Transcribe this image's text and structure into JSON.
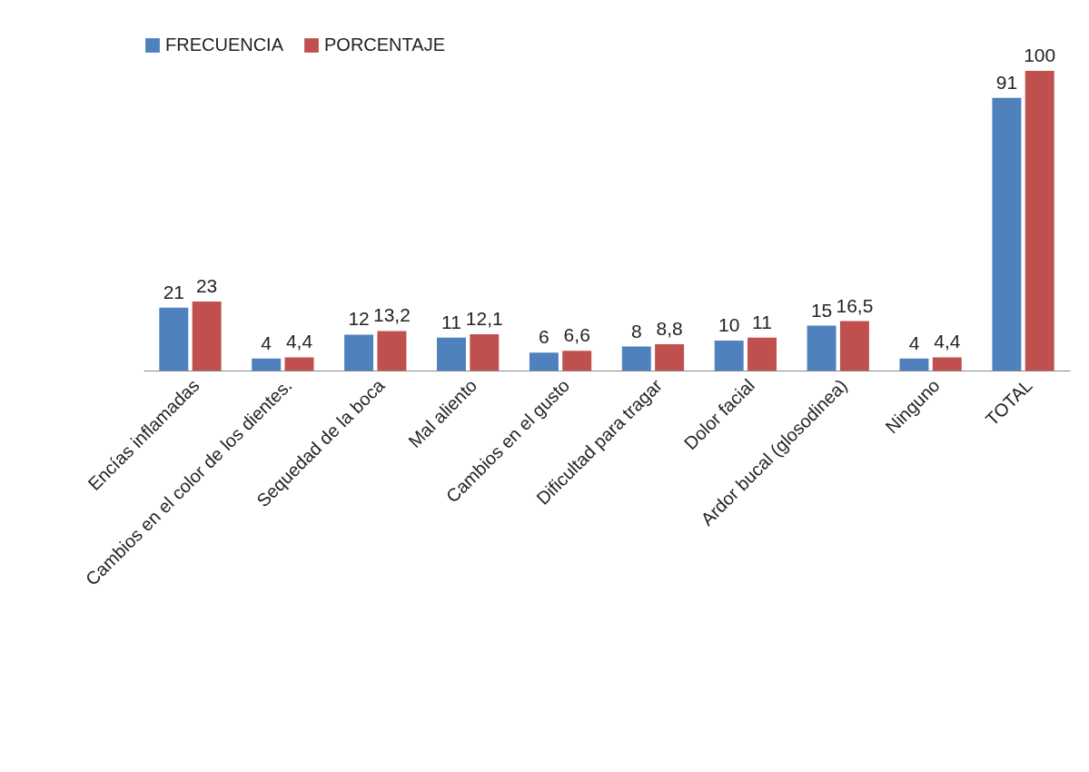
{
  "chart_data": {
    "type": "bar",
    "categories": [
      "Encías inflamadas",
      "Cambios en el color de los dientes.",
      "Sequedad de la boca",
      "Mal aliento",
      "Cambios en el gusto",
      "Dificultad  para tragar",
      "Dolor facial",
      "Ardor bucal (glosodinea)",
      "Ninguno",
      "TOTAL"
    ],
    "series": [
      {
        "name": "FRECUENCIA",
        "color": "#4f81bd",
        "values": [
          21,
          4,
          12,
          11,
          6,
          8,
          10,
          15,
          4,
          91
        ],
        "value_labels": [
          "21",
          "4",
          "12",
          "11",
          "6",
          "8",
          "10",
          "15",
          "4",
          "91"
        ]
      },
      {
        "name": "PORCENTAJE",
        "color": "#c0504d",
        "values": [
          23,
          4.4,
          13.2,
          12.1,
          6.6,
          8.8,
          11,
          16.5,
          4.4,
          100
        ],
        "value_labels": [
          "23",
          "4,4",
          "13,2",
          "12,1",
          "6,6",
          "8,8",
          "11",
          "16,5",
          "4,4",
          "100"
        ]
      }
    ],
    "legend": "top"
  }
}
